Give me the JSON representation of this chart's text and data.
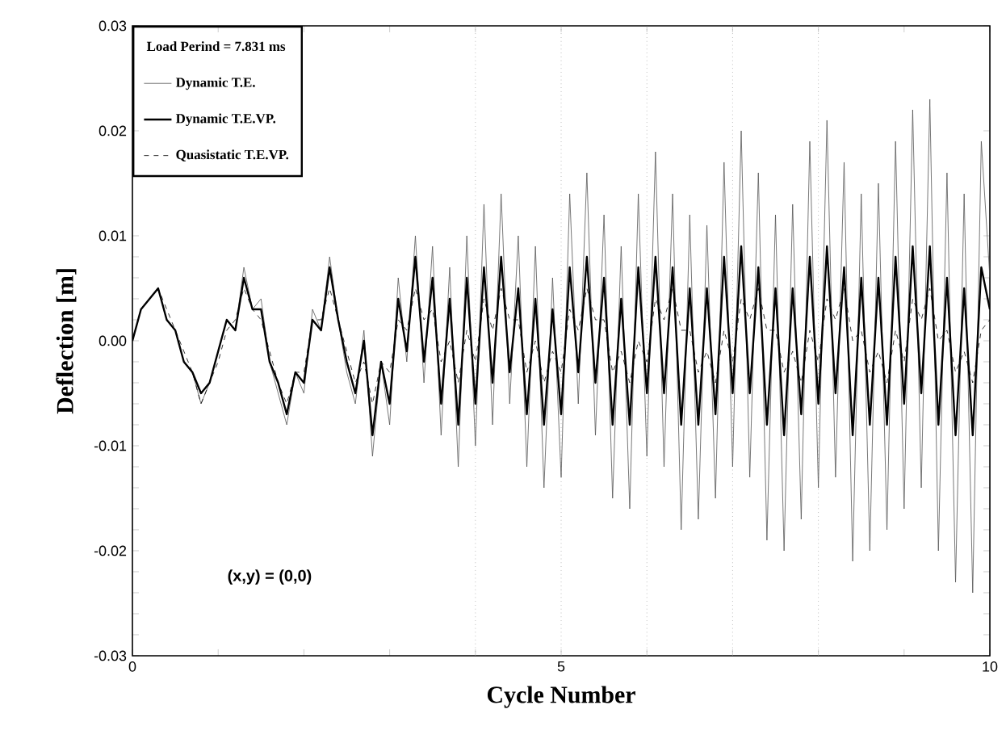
{
  "chart_data": {
    "type": "line",
    "xlabel": "Cycle Number",
    "ylabel": "Deflection [m]",
    "legend_title": "Load Perind = 7.831 ms",
    "annotations": [
      "(x,y) = (0,0)"
    ],
    "x": [
      0,
      0.1,
      0.2,
      0.3,
      0.4,
      0.5,
      0.6,
      0.7,
      0.8,
      0.9,
      1.0,
      1.1,
      1.2,
      1.3,
      1.4,
      1.5,
      1.6,
      1.7,
      1.8,
      1.9,
      2.0,
      2.1,
      2.2,
      2.3,
      2.4,
      2.5,
      2.6,
      2.7,
      2.8,
      2.9,
      3.0,
      3.1,
      3.2,
      3.3,
      3.4,
      3.5,
      3.6,
      3.7,
      3.8,
      3.9,
      4.0,
      4.1,
      4.2,
      4.3,
      4.4,
      4.5,
      4.6,
      4.7,
      4.8,
      4.9,
      5.0,
      5.1,
      5.2,
      5.3,
      5.4,
      5.5,
      5.6,
      5.7,
      5.8,
      5.9,
      6.0,
      6.1,
      6.2,
      6.3,
      6.4,
      6.5,
      6.6,
      6.7,
      6.8,
      6.9,
      7.0,
      7.1,
      7.2,
      7.3,
      7.4,
      7.5,
      7.6,
      7.7,
      7.8,
      7.9,
      8.0,
      8.1,
      8.2,
      8.3,
      8.4,
      8.5,
      8.6,
      8.7,
      8.8,
      8.9,
      9.0,
      9.1,
      9.2,
      9.3,
      9.4,
      9.5,
      9.6,
      9.7,
      9.8,
      9.9,
      10.0
    ],
    "series": [
      {
        "name": "Dynamic T.E.",
        "color": "#555555",
        "line_style": "solid",
        "values": [
          0,
          0.003,
          0.004,
          0.005,
          0.002,
          0.001,
          -0.002,
          -0.003,
          -0.006,
          -0.004,
          -0.001,
          0.002,
          0.001,
          0.007,
          0.003,
          0.004,
          -0.002,
          -0.005,
          -0.008,
          -0.003,
          -0.005,
          0.003,
          0.001,
          0.008,
          0.002,
          -0.003,
          -0.006,
          0.001,
          -0.011,
          -0.002,
          -0.008,
          0.006,
          -0.002,
          0.01,
          -0.004,
          0.009,
          -0.009,
          0.007,
          -0.012,
          0.01,
          -0.01,
          0.013,
          -0.008,
          0.014,
          -0.006,
          0.01,
          -0.012,
          0.009,
          -0.014,
          0.006,
          -0.013,
          0.014,
          -0.006,
          0.016,
          -0.009,
          0.012,
          -0.015,
          0.009,
          -0.016,
          0.014,
          -0.011,
          0.018,
          -0.012,
          0.014,
          -0.018,
          0.012,
          -0.017,
          0.011,
          -0.015,
          0.017,
          -0.012,
          0.02,
          -0.013,
          0.016,
          -0.019,
          0.012,
          -0.02,
          0.013,
          -0.017,
          0.019,
          -0.014,
          0.021,
          -0.013,
          0.017,
          -0.021,
          0.014,
          -0.02,
          0.015,
          -0.018,
          0.019,
          -0.016,
          0.022,
          -0.014,
          0.023,
          -0.02,
          0.016,
          -0.023,
          0.014,
          -0.024,
          0.019,
          0.006
        ]
      },
      {
        "name": "Dynamic T.E.VP.",
        "color": "#000000",
        "line_style": "solid",
        "values": [
          0,
          0.003,
          0.004,
          0.005,
          0.002,
          0.001,
          -0.002,
          -0.003,
          -0.005,
          -0.004,
          -0.001,
          0.002,
          0.001,
          0.006,
          0.003,
          0.003,
          -0.002,
          -0.004,
          -0.007,
          -0.003,
          -0.004,
          0.002,
          0.001,
          0.007,
          0.002,
          -0.002,
          -0.005,
          0.0,
          -0.009,
          -0.002,
          -0.006,
          0.004,
          -0.001,
          0.008,
          -0.002,
          0.006,
          -0.006,
          0.004,
          -0.008,
          0.006,
          -0.006,
          0.007,
          -0.004,
          0.008,
          -0.003,
          0.005,
          -0.007,
          0.004,
          -0.008,
          0.003,
          -0.007,
          0.007,
          -0.003,
          0.008,
          -0.004,
          0.006,
          -0.008,
          0.004,
          -0.008,
          0.007,
          -0.005,
          0.008,
          -0.005,
          0.007,
          -0.008,
          0.005,
          -0.008,
          0.005,
          -0.007,
          0.008,
          -0.005,
          0.009,
          -0.005,
          0.007,
          -0.008,
          0.005,
          -0.009,
          0.005,
          -0.007,
          0.008,
          -0.006,
          0.009,
          -0.005,
          0.007,
          -0.009,
          0.006,
          -0.008,
          0.006,
          -0.008,
          0.008,
          -0.006,
          0.009,
          -0.005,
          0.009,
          -0.008,
          0.006,
          -0.009,
          0.005,
          -0.009,
          0.007,
          0.003
        ]
      },
      {
        "name": "Quasistatic T.E.VP.",
        "color": "#000000",
        "line_style": "dashed",
        "values": [
          0,
          0.003,
          0.004,
          0.005,
          0.003,
          0.001,
          -0.001,
          -0.003,
          -0.006,
          -0.004,
          -0.002,
          0.001,
          0.002,
          0.005,
          0.003,
          0.002,
          -0.001,
          -0.004,
          -0.006,
          -0.003,
          -0.003,
          0.002,
          0.002,
          0.005,
          0.002,
          -0.001,
          -0.004,
          -0.002,
          -0.006,
          -0.002,
          -0.003,
          0.002,
          0.001,
          0.005,
          0.002,
          0.003,
          -0.002,
          0.0,
          -0.004,
          0.001,
          -0.002,
          0.004,
          0.001,
          0.005,
          0.002,
          0.002,
          -0.003,
          0.0,
          -0.004,
          -0.001,
          -0.003,
          0.003,
          0.001,
          0.005,
          0.002,
          0.002,
          -0.003,
          -0.001,
          -0.004,
          0.0,
          -0.002,
          0.004,
          0.002,
          0.005,
          0.001,
          0.001,
          -0.003,
          -0.001,
          -0.004,
          0.001,
          -0.002,
          0.004,
          0.002,
          0.005,
          0.001,
          0.001,
          -0.003,
          -0.001,
          -0.004,
          0.001,
          -0.002,
          0.004,
          0.002,
          0.005,
          0.0,
          0.001,
          -0.003,
          -0.001,
          -0.004,
          0.001,
          -0.002,
          0.004,
          0.002,
          0.005,
          0.0,
          0.001,
          -0.003,
          -0.001,
          -0.004,
          0.001,
          0.002
        ]
      }
    ],
    "xlim": [
      0,
      10
    ],
    "ylim": [
      -0.03,
      0.03
    ],
    "xticks": [
      0,
      {
        "value": 1,
        "label": null
      },
      {
        "value": 2,
        "label": null
      },
      {
        "value": 3,
        "label": null
      },
      {
        "value": 4,
        "label": null
      },
      5,
      {
        "value": 6,
        "label": null
      },
      {
        "value": 7,
        "label": null
      },
      {
        "value": 8,
        "label": null
      },
      {
        "value": 9,
        "label": null
      },
      10
    ],
    "yticks": [
      -0.03,
      {
        "value": -0.028,
        "label": null
      },
      {
        "value": -0.026,
        "label": null
      },
      {
        "value": -0.024,
        "label": null
      },
      {
        "value": -0.022,
        "label": null
      },
      -0.02,
      {
        "value": -0.018,
        "label": null
      },
      {
        "value": -0.016,
        "label": null
      },
      {
        "value": -0.014,
        "label": null
      },
      {
        "value": -0.012,
        "label": null
      },
      -0.01,
      {
        "value": -0.008,
        "label": null
      },
      {
        "value": -0.006,
        "label": null
      },
      {
        "value": -0.004,
        "label": null
      },
      {
        "value": -0.002,
        "label": null
      },
      {
        "value": 0,
        "label": "0.00"
      },
      {
        "value": 0.002,
        "label": null
      },
      {
        "value": 0.004,
        "label": null
      },
      {
        "value": 0.006,
        "label": null
      },
      {
        "value": 0.008,
        "label": null
      },
      0.01,
      0.02,
      0.03
    ],
    "ref_lines": [
      {
        "axis": "x",
        "value": 4,
        "color": "#999999",
        "line_style": "dotted"
      },
      {
        "axis": "x",
        "value": 5,
        "color": "#999999",
        "line_style": "dotted"
      },
      {
        "axis": "x",
        "value": 6,
        "color": "#999999",
        "line_style": "dotted"
      },
      {
        "axis": "x",
        "value": 7,
        "color": "#999999",
        "line_style": "dotted"
      },
      {
        "axis": "x",
        "value": 8,
        "color": "#999999",
        "line_style": "dotted"
      }
    ],
    "grid": false,
    "legend": "top left",
    "marker": "none"
  }
}
